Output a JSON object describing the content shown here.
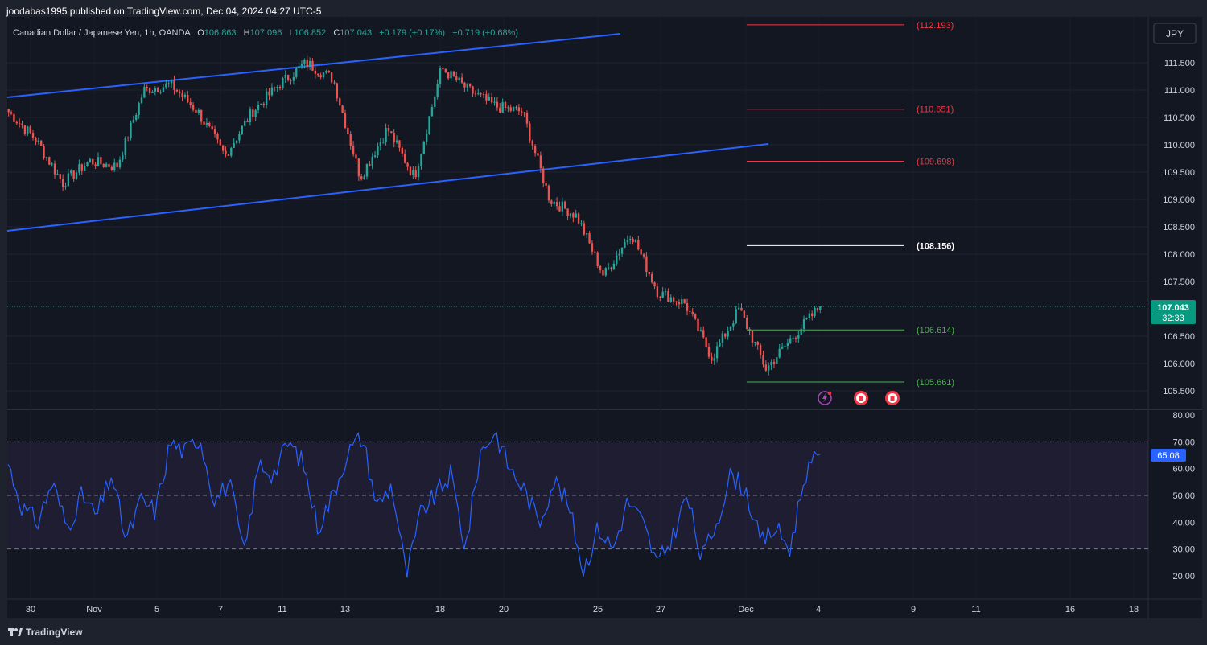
{
  "header": {
    "published_by": "joodabas1995 published on TradingView.com, Dec 04, 2024 04:27 UTC-5"
  },
  "legend": {
    "symbol": "Canadian Dollar / Japanese Yen, 1h, OANDA",
    "o_label": "O",
    "o_value": "106.863",
    "h_label": "H",
    "h_value": "107.096",
    "l_label": "L",
    "l_value": "106.852",
    "c_label": "C",
    "c_value": "107.043",
    "change": "+0.179 (+0.17%)",
    "change2": "+0.719 (+0.68%)"
  },
  "currency_button": "JPY",
  "price_axis": {
    "ticks": [
      "111.500",
      "111.000",
      "110.500",
      "110.000",
      "109.500",
      "109.000",
      "108.500",
      "108.000",
      "107.500",
      "106.500",
      "106.000",
      "105.500"
    ],
    "current_price": "107.043",
    "countdown": "32:33"
  },
  "rsi_axis": {
    "ticks": [
      "80.00",
      "70.00",
      "60.00",
      "50.00",
      "40.00",
      "30.00",
      "20.00"
    ],
    "current_value": "65.08"
  },
  "time_axis": {
    "ticks": [
      "30",
      "Nov",
      "5",
      "7",
      "11",
      "13",
      "18",
      "20",
      "25",
      "27",
      "Dec",
      "4",
      "9",
      "11",
      "16",
      "18"
    ]
  },
  "levels": [
    {
      "label": "(112.193)",
      "value": 112.193,
      "color": "#f23645"
    },
    {
      "label": "(110.651)",
      "value": 110.651,
      "color": "#f23645"
    },
    {
      "label": "(109.698)",
      "value": 109.698,
      "color": "#f23645"
    },
    {
      "label": "(108.156)",
      "value": 108.156,
      "color": "#ffffff"
    },
    {
      "label": "(106.614)",
      "value": 106.614,
      "color": "#4caf50"
    },
    {
      "label": "(105.661)",
      "value": 105.661,
      "color": "#4caf50"
    }
  ],
  "footer": {
    "brand": "TradingView"
  },
  "colors": {
    "up": "#26a69a",
    "down": "#ef5350",
    "channel": "#2962ff",
    "rsi_line": "#2962ff",
    "rsi_band": "#7e57c2",
    "price_tag": "#089981",
    "rsi_tag": "#2962ff"
  },
  "chart_data": {
    "type": "candlestick",
    "symbol": "CAD/JPY",
    "interval": "1h",
    "ylim": [
      105.3,
      112.3
    ],
    "rsi_ylim": [
      15,
      82
    ],
    "price_path": [
      {
        "date": "Oct 30",
        "price": 110.6
      },
      {
        "date": "Oct 31",
        "price": 110.1
      },
      {
        "date": "Nov 1",
        "price": 109.3
      },
      {
        "date": "Nov 4",
        "price": 109.7
      },
      {
        "date": "Nov 5",
        "price": 109.6
      },
      {
        "date": "Nov 6",
        "price": 111.0
      },
      {
        "date": "Nov 7",
        "price": 111.1
      },
      {
        "date": "Nov 8",
        "price": 110.6
      },
      {
        "date": "Nov 11",
        "price": 109.8
      },
      {
        "date": "Nov 12",
        "price": 110.6
      },
      {
        "date": "Nov 13",
        "price": 111.1
      },
      {
        "date": "Nov 14",
        "price": 111.5
      },
      {
        "date": "Nov 15",
        "price": 111.2
      },
      {
        "date": "Nov 18",
        "price": 109.4
      },
      {
        "date": "Nov 19",
        "price": 110.3
      },
      {
        "date": "Nov 19 PM",
        "price": 109.4
      },
      {
        "date": "Nov 20",
        "price": 111.4
      },
      {
        "date": "Nov 21",
        "price": 111.0
      },
      {
        "date": "Nov 22",
        "price": 110.7
      },
      {
        "date": "Nov 25",
        "price": 110.6
      },
      {
        "date": "Nov 26",
        "price": 109.0
      },
      {
        "date": "Nov 26 PM",
        "price": 108.7
      },
      {
        "date": "Nov 27",
        "price": 107.6
      },
      {
        "date": "Nov 28",
        "price": 108.4
      },
      {
        "date": "Nov 29",
        "price": 107.3
      },
      {
        "date": "Nov 29 PM",
        "price": 107.1
      },
      {
        "date": "Dec 2",
        "price": 106.1
      },
      {
        "date": "Dec 2 PM",
        "price": 107.0
      },
      {
        "date": "Dec 3",
        "price": 105.9
      },
      {
        "date": "Dec 3 PM",
        "price": 106.5
      },
      {
        "date": "Dec 4",
        "price": 107.043
      }
    ],
    "rsi_path": [
      62,
      45,
      40,
      55,
      38,
      50,
      42,
      58,
      33,
      48,
      44,
      70,
      66,
      72,
      48,
      55,
      28,
      62,
      58,
      70,
      62,
      38,
      50,
      66,
      72,
      46,
      54,
      20,
      44,
      50,
      58,
      30,
      66,
      74,
      60,
      52,
      40,
      56,
      46,
      22,
      38,
      30,
      48,
      40,
      24,
      34,
      50,
      26,
      40,
      58,
      52,
      32,
      38,
      30,
      58,
      65.08
    ]
  }
}
